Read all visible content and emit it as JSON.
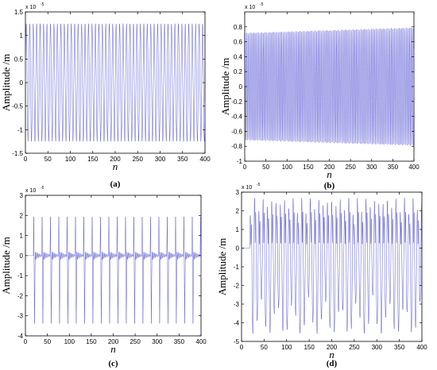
{
  "chart_data": [
    {
      "type": "line",
      "panel_label": "(a)",
      "xlabel": "n",
      "ylabel": "Amplitude /m",
      "y_exponent_label": "x 10",
      "y_exponent": "-5",
      "xlim": [
        0,
        400
      ],
      "ylim": [
        -1.5,
        1.5
      ],
      "x_ticks": [
        0,
        50,
        100,
        150,
        200,
        250,
        300,
        350,
        400
      ],
      "y_ticks": [
        -1.5,
        -1,
        -0.5,
        0,
        0.5,
        1,
        1.5
      ],
      "y_tick_labels": [
        "-1.5",
        "-1",
        "-0.5",
        "0",
        "0.5",
        "1",
        "1.5"
      ],
      "signal": {
        "kind": "sine",
        "period": 7.7,
        "amplitude": 1.25,
        "envelope_growth": 0.0
      },
      "line_color": "#5b5bd6"
    },
    {
      "type": "line",
      "panel_label": "(b)",
      "xlabel": "n",
      "ylabel": "Amplitude /m",
      "y_exponent_label": "x 10",
      "y_exponent": "-5",
      "xlim": [
        0,
        400
      ],
      "ylim": [
        -1,
        1
      ],
      "x_ticks": [
        0,
        50,
        100,
        150,
        200,
        250,
        300,
        350,
        400
      ],
      "y_ticks": [
        -1,
        -0.8,
        -0.6,
        -0.4,
        -0.2,
        0,
        0.2,
        0.4,
        0.6,
        0.8
      ],
      "y_tick_labels": [
        "-1",
        "-0.8",
        "-0.6",
        "-0.4",
        "-0.2",
        "0",
        "0.2",
        "0.4",
        "0.6",
        "0.8"
      ],
      "signal": {
        "kind": "sine",
        "period": 3.6,
        "amplitude": 0.72,
        "envelope_growth": 0.1
      },
      "line_color": "#5b5bd6"
    },
    {
      "type": "line",
      "panel_label": "(c)",
      "xlabel": "n",
      "ylabel": "Amplitude /m",
      "y_exponent_label": "x 10",
      "y_exponent": "-5",
      "xlim": [
        0,
        400
      ],
      "ylim": [
        -4,
        3
      ],
      "x_ticks": [
        0,
        50,
        100,
        150,
        200,
        250,
        300,
        350,
        400
      ],
      "y_ticks": [
        -4,
        -3,
        -2,
        -1,
        0,
        1,
        2,
        3
      ],
      "y_tick_labels": [
        "-4",
        "-3",
        "-2",
        "-1",
        "0",
        "1",
        "2",
        "3"
      ],
      "signal": {
        "kind": "pulse",
        "period": 19,
        "peak": 2.2,
        "trough": -3.6,
        "start": 18
      },
      "line_color": "#5b5bd6"
    },
    {
      "type": "line",
      "panel_label": "(d)",
      "xlabel": "n",
      "ylabel": "Amplitude /m",
      "y_exponent_label": "x 10",
      "y_exponent": "-5",
      "xlim": [
        0,
        400
      ],
      "ylim": [
        -5,
        3
      ],
      "x_ticks": [
        0,
        50,
        100,
        150,
        200,
        250,
        300,
        350,
        400
      ],
      "y_ticks": [
        -5,
        -4,
        -3,
        -2,
        -1,
        0,
        1,
        2,
        3
      ],
      "y_tick_labels": [
        "-5",
        "-4",
        "-3",
        "-2",
        "-1",
        "0",
        "1",
        "2",
        "3"
      ],
      "signal": {
        "kind": "irregular",
        "period": 9.5,
        "peak": 2.7,
        "trough": -4.6,
        "start": 18
      },
      "line_color": "#5b5bd6"
    }
  ]
}
